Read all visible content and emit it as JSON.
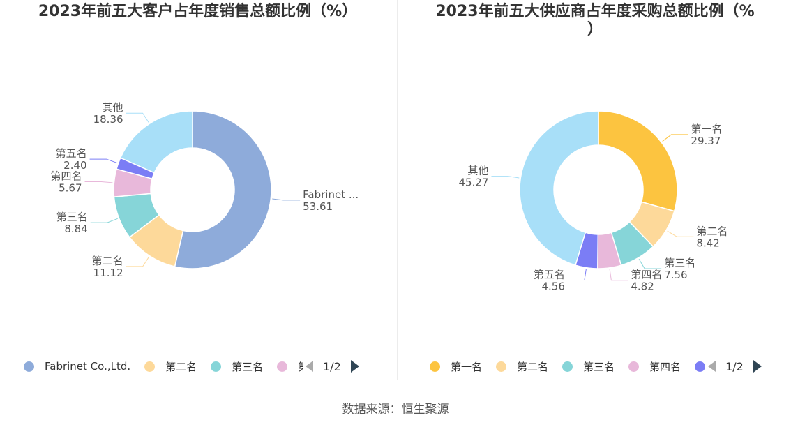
{
  "left": {
    "title": "2023年前五大客户占年度销售总额比例（%）",
    "legend": {
      "items": [
        {
          "label": "Fabrinet Co.,Ltd.",
          "color": "#8eabda"
        },
        {
          "label": "第二名",
          "color": "#fdd99a"
        },
        {
          "label": "第三名",
          "color": "#86d5d8"
        },
        {
          "label": "第",
          "color": "#e8b8da"
        }
      ],
      "page": "1/2"
    }
  },
  "right": {
    "title_line1": "2023年前五大供应商占年度采购总额比例（%",
    "title_line2": "）",
    "legend": {
      "items": [
        {
          "label": "第一名",
          "color": "#fcc440"
        },
        {
          "label": "第二名",
          "color": "#fdd99a"
        },
        {
          "label": "第三名",
          "color": "#86d5d8"
        },
        {
          "label": "第四名",
          "color": "#e8b8da"
        },
        {
          "label": "",
          "color": "#7b7df5"
        }
      ],
      "page": "1/2"
    }
  },
  "source": "数据来源：恒生聚源",
  "chart_data": [
    {
      "type": "pie",
      "title": "2023年前五大客户占年度销售总额比例（%）",
      "slices": [
        {
          "name": "Fabrinet Co.,Ltd.",
          "label": "Fabrinet ...",
          "value": 53.61,
          "color": "#8eabda"
        },
        {
          "name": "第二名",
          "value": 11.12,
          "color": "#fdd99a"
        },
        {
          "name": "第三名",
          "value": 8.84,
          "color": "#86d5d8"
        },
        {
          "name": "第四名",
          "value": 5.67,
          "color": "#e8b8da"
        },
        {
          "name": "第五名",
          "value": 2.4,
          "color": "#7b7df5"
        },
        {
          "name": "其他",
          "value": 18.36,
          "color": "#a8dff8"
        }
      ]
    },
    {
      "type": "pie",
      "title": "2023年前五大供应商占年度采购总额比例（%）",
      "slices": [
        {
          "name": "第一名",
          "value": 29.37,
          "color": "#fcc440"
        },
        {
          "name": "第二名",
          "value": 8.42,
          "color": "#fdd99a"
        },
        {
          "name": "第三名",
          "value": 7.56,
          "color": "#86d5d8"
        },
        {
          "name": "第四名",
          "value": 4.82,
          "color": "#e8b8da"
        },
        {
          "name": "第五名",
          "value": 4.56,
          "color": "#7b7df5"
        },
        {
          "name": "其他",
          "value": 45.27,
          "color": "#a8dff8"
        }
      ]
    }
  ]
}
